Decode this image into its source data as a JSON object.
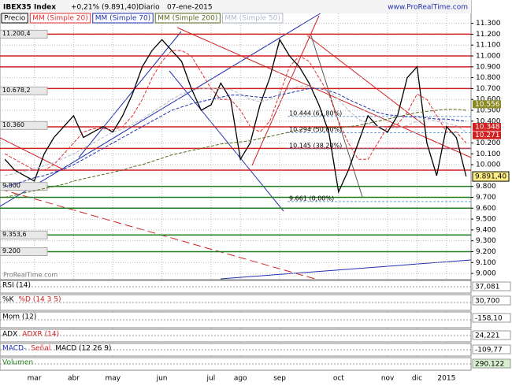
{
  "header": {
    "symbol": "IBEX35 Index",
    "change": "+0,21% (9.891,40)",
    "period": "Diario",
    "date": "07-ene-2015",
    "site": "www.ProRealTime.com",
    "watermark": "ProRealTime.com"
  },
  "chart_data": {
    "type": "line",
    "categories": [
      null,
      null,
      null,
      "mar",
      null,
      null,
      null,
      "abr",
      null,
      null,
      null,
      "may",
      null,
      null,
      null,
      null,
      "jun",
      null,
      null,
      null,
      null,
      "jul",
      null,
      null,
      "ago",
      null,
      null,
      null,
      "sep",
      null,
      null,
      null,
      null,
      null,
      "oct",
      null,
      null,
      null,
      null,
      "nov",
      null,
      null,
      "dic",
      null,
      null,
      "2015",
      null,
      null
    ],
    "series": [
      {
        "name": "Precio",
        "color": "#000000",
        "values": [
          10050,
          9950,
          9900,
          9850,
          10100,
          10250,
          10350,
          10450,
          10250,
          10300,
          10350,
          10300,
          10450,
          10650,
          10900,
          11050,
          11150,
          11050,
          10950,
          10700,
          10500,
          10550,
          10750,
          10600,
          10050,
          10200,
          10550,
          10800,
          11150,
          11000,
          10900,
          10750,
          10550,
          10300,
          9750,
          9950,
          10200,
          10450,
          10350,
          10300,
          10450,
          10800,
          10900,
          10200,
          9900,
          10350,
          10250,
          9891.4
        ]
      },
      {
        "name": "MM (Simple 20)",
        "color": "#e03030",
        "values": [
          10100,
          10050,
          10000,
          9950,
          9950,
          10000,
          10100,
          10200,
          10300,
          10330,
          10330,
          10320,
          10350,
          10450,
          10600,
          10800,
          10950,
          11050,
          11050,
          11000,
          10850,
          10700,
          10600,
          10600,
          10500,
          10350,
          10300,
          10400,
          10650,
          10900,
          11000,
          10950,
          10800,
          10650,
          10400,
          10200,
          10050,
          10050,
          10200,
          10350,
          10370,
          10480,
          10650,
          10600,
          10450,
          10300,
          10300,
          10200
        ]
      },
      {
        "name": "MM (Simple 70)",
        "color": "#2030b0",
        "values": [
          9800,
          9820,
          9850,
          9880,
          9900,
          9930,
          9960,
          10000,
          10050,
          10100,
          10150,
          10200,
          10250,
          10300,
          10350,
          10400,
          10450,
          10500,
          10530,
          10560,
          10580,
          10600,
          10620,
          10640,
          10640,
          10630,
          10620,
          10620,
          10640,
          10660,
          10680,
          10700,
          10700,
          10680,
          10650,
          10600,
          10560,
          10520,
          10480,
          10460,
          10450,
          10440,
          10440,
          10430,
          10420,
          10420,
          10410,
          10400
        ]
      },
      {
        "name": "MM (Simple 200)",
        "color": "#5a6a20",
        "values": [
          9700,
          9720,
          9740,
          9760,
          9780,
          9800,
          9820,
          9850,
          9870,
          9890,
          9910,
          9930,
          9950,
          9980,
          10000,
          10030,
          10060,
          10090,
          10110,
          10130,
          10150,
          10170,
          10190,
          10200,
          10210,
          10220,
          10240,
          10260,
          10280,
          10300,
          10320,
          10330,
          10340,
          10340,
          10340,
          10350,
          10360,
          10380,
          10400,
          10420,
          10440,
          10460,
          10480,
          10490,
          10500,
          10510,
          10510,
          10500
        ]
      },
      {
        "name": "MM (Simple 50)",
        "color": "#b0b8c8",
        "values": [
          9900,
          9920,
          9940,
          9960,
          9990,
          10020,
          10060,
          10100,
          10150,
          10200,
          10250,
          10300,
          10330,
          10370,
          10420,
          10480,
          10540,
          10600,
          10650,
          10680,
          10700,
          10700,
          10700,
          10690,
          10650,
          10600,
          10580,
          10600,
          10650,
          10700,
          10720,
          10720,
          10700,
          10680,
          10600,
          10500,
          10420,
          10380,
          10350,
          10340,
          10340,
          10360,
          10400,
          10420,
          10400,
          10380,
          10360,
          10300
        ]
      }
    ],
    "ylim": [
      8950,
      11500
    ],
    "yticks": [
      {
        "value": 9000,
        "label": "9.000"
      },
      {
        "value": 9100,
        "label": "9.100"
      },
      {
        "value": 9200,
        "label": "9.200"
      },
      {
        "value": 9300,
        "label": "9.300"
      },
      {
        "value": 9400,
        "label": "9.400"
      },
      {
        "value": 9500,
        "label": "9.500"
      },
      {
        "value": 9600,
        "label": "9.600"
      },
      {
        "value": 9700,
        "label": "9.700"
      },
      {
        "value": 9800,
        "label": "9.800"
      },
      {
        "value": 10000,
        "label": "10.000"
      },
      {
        "value": 10100,
        "label": "10.100"
      },
      {
        "value": 10200,
        "label": "10.200"
      },
      {
        "value": 10400,
        "label": "10.400"
      },
      {
        "value": 10500,
        "label": "10.500"
      },
      {
        "value": 10600,
        "label": "10.600"
      },
      {
        "value": 10700,
        "label": "10.700"
      },
      {
        "value": 10800,
        "label": "10.800"
      },
      {
        "value": 10900,
        "label": "10.900"
      },
      {
        "value": 11000,
        "label": "11.000"
      },
      {
        "value": 11100,
        "label": "11.100"
      },
      {
        "value": 11200,
        "label": "11.200"
      },
      {
        "value": 11300,
        "label": "11.300"
      }
    ],
    "grid": true,
    "last_price": {
      "value": 9891.4,
      "label": "9.891,40"
    },
    "right_labels": [
      {
        "value": 10556,
        "label": "10.556",
        "color": "#8a8a20"
      },
      {
        "value": 10348,
        "label": "10.348",
        "color": "#d02020"
      },
      {
        "value": 10271,
        "label": "10.271",
        "color": "#d02020"
      }
    ],
    "left_labels": [
      {
        "value": 11200.4,
        "label": "11.200,4"
      },
      {
        "value": 10678.2,
        "label": "10.678,2"
      },
      {
        "value": 10360,
        "label": "10.360"
      },
      {
        "value": 9800,
        "label": "9.800"
      },
      {
        "value": 9353.6,
        "label": "9.353,6"
      },
      {
        "value": 9200,
        "label": "9.200"
      }
    ],
    "fib_labels": [
      {
        "value": 10444,
        "label": "10.444 (61,80%)"
      },
      {
        "value": 10294,
        "label": "10.294 (50,00%)"
      },
      {
        "value": 10145,
        "label": "10.145 (38,20%)"
      },
      {
        "value": 9661,
        "label": "9.661 (0,00%)"
      }
    ],
    "hlines": [
      {
        "value": 11200,
        "color": "#d02020"
      },
      {
        "value": 11000,
        "color": "#d02020"
      },
      {
        "value": 10900,
        "color": "#d02020"
      },
      {
        "value": 10700,
        "color": "#d02020"
      },
      {
        "value": 10348,
        "color": "#d02020"
      },
      {
        "value": 10150,
        "color": "#d02020"
      },
      {
        "value": 9950,
        "color": "#d02020"
      },
      {
        "value": 9800,
        "color": "#208020"
      },
      {
        "value": 9700,
        "color": "#208020"
      },
      {
        "value": 9600,
        "color": "#208020"
      },
      {
        "value": 9353.6,
        "color": "#208020"
      },
      {
        "value": 9200,
        "color": "#208020"
      }
    ],
    "indicators": [
      {
        "titles": [
          "RSI (14)"
        ],
        "colors": [
          "#000000"
        ],
        "last": {
          "value": 37.081,
          "label": "37,081"
        }
      },
      {
        "titles": [
          "%K",
          "%D (14 3 5)"
        ],
        "colors": [
          "#000000",
          "#d02020"
        ],
        "last": {
          "value": 30.7,
          "label": "30,700"
        }
      },
      {
        "titles": [
          "Mom (12)"
        ],
        "colors": [
          "#000000"
        ],
        "last": {
          "value": -158.1,
          "label": "-158,10"
        }
      },
      {
        "titles": [
          "ADX",
          "ADXR (14)"
        ],
        "colors": [
          "#000000",
          "#d02020"
        ],
        "last": {
          "value": 24.221,
          "label": "24,221"
        }
      },
      {
        "titles": [
          "MACD-",
          "Señal",
          "MACD (12 26 9)"
        ],
        "colors": [
          "#2030b0",
          "#d02020",
          "#000000"
        ],
        "last": {
          "value": -109.77,
          "label": "-109,77"
        }
      },
      {
        "titles": [
          "Volumen"
        ],
        "colors": [
          "#208020"
        ],
        "last": {
          "value": 290122,
          "label": "290.122"
        }
      }
    ]
  }
}
